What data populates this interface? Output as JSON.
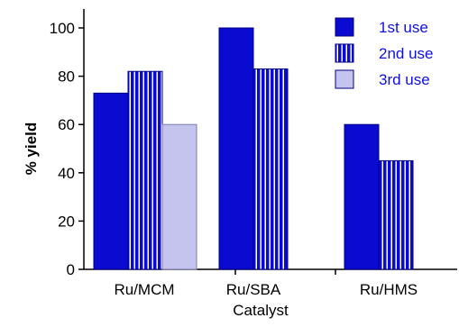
{
  "chart_data": {
    "type": "bar",
    "title": "",
    "xlabel": "Catalyst",
    "ylabel": "% yield",
    "ylim": [
      0,
      100
    ],
    "yticks": [
      "0",
      "20",
      "40",
      "60",
      "80",
      "100"
    ],
    "categories": [
      "Ru/MCM",
      "Ru/SBA",
      "Ru/HMS"
    ],
    "series": [
      {
        "name": "1st use",
        "values": [
          73,
          100,
          60
        ],
        "color": "#0a0ad0",
        "pattern": "solid"
      },
      {
        "name": "2nd use",
        "values": [
          82,
          83,
          45
        ],
        "color": "#0a0ad0",
        "pattern": "vertical-stripes"
      },
      {
        "name": "3rd use",
        "values": [
          60,
          null,
          null
        ],
        "color": "#c4c4ee",
        "pattern": "solid"
      }
    ],
    "legend_position": "top-right",
    "grid": false
  }
}
